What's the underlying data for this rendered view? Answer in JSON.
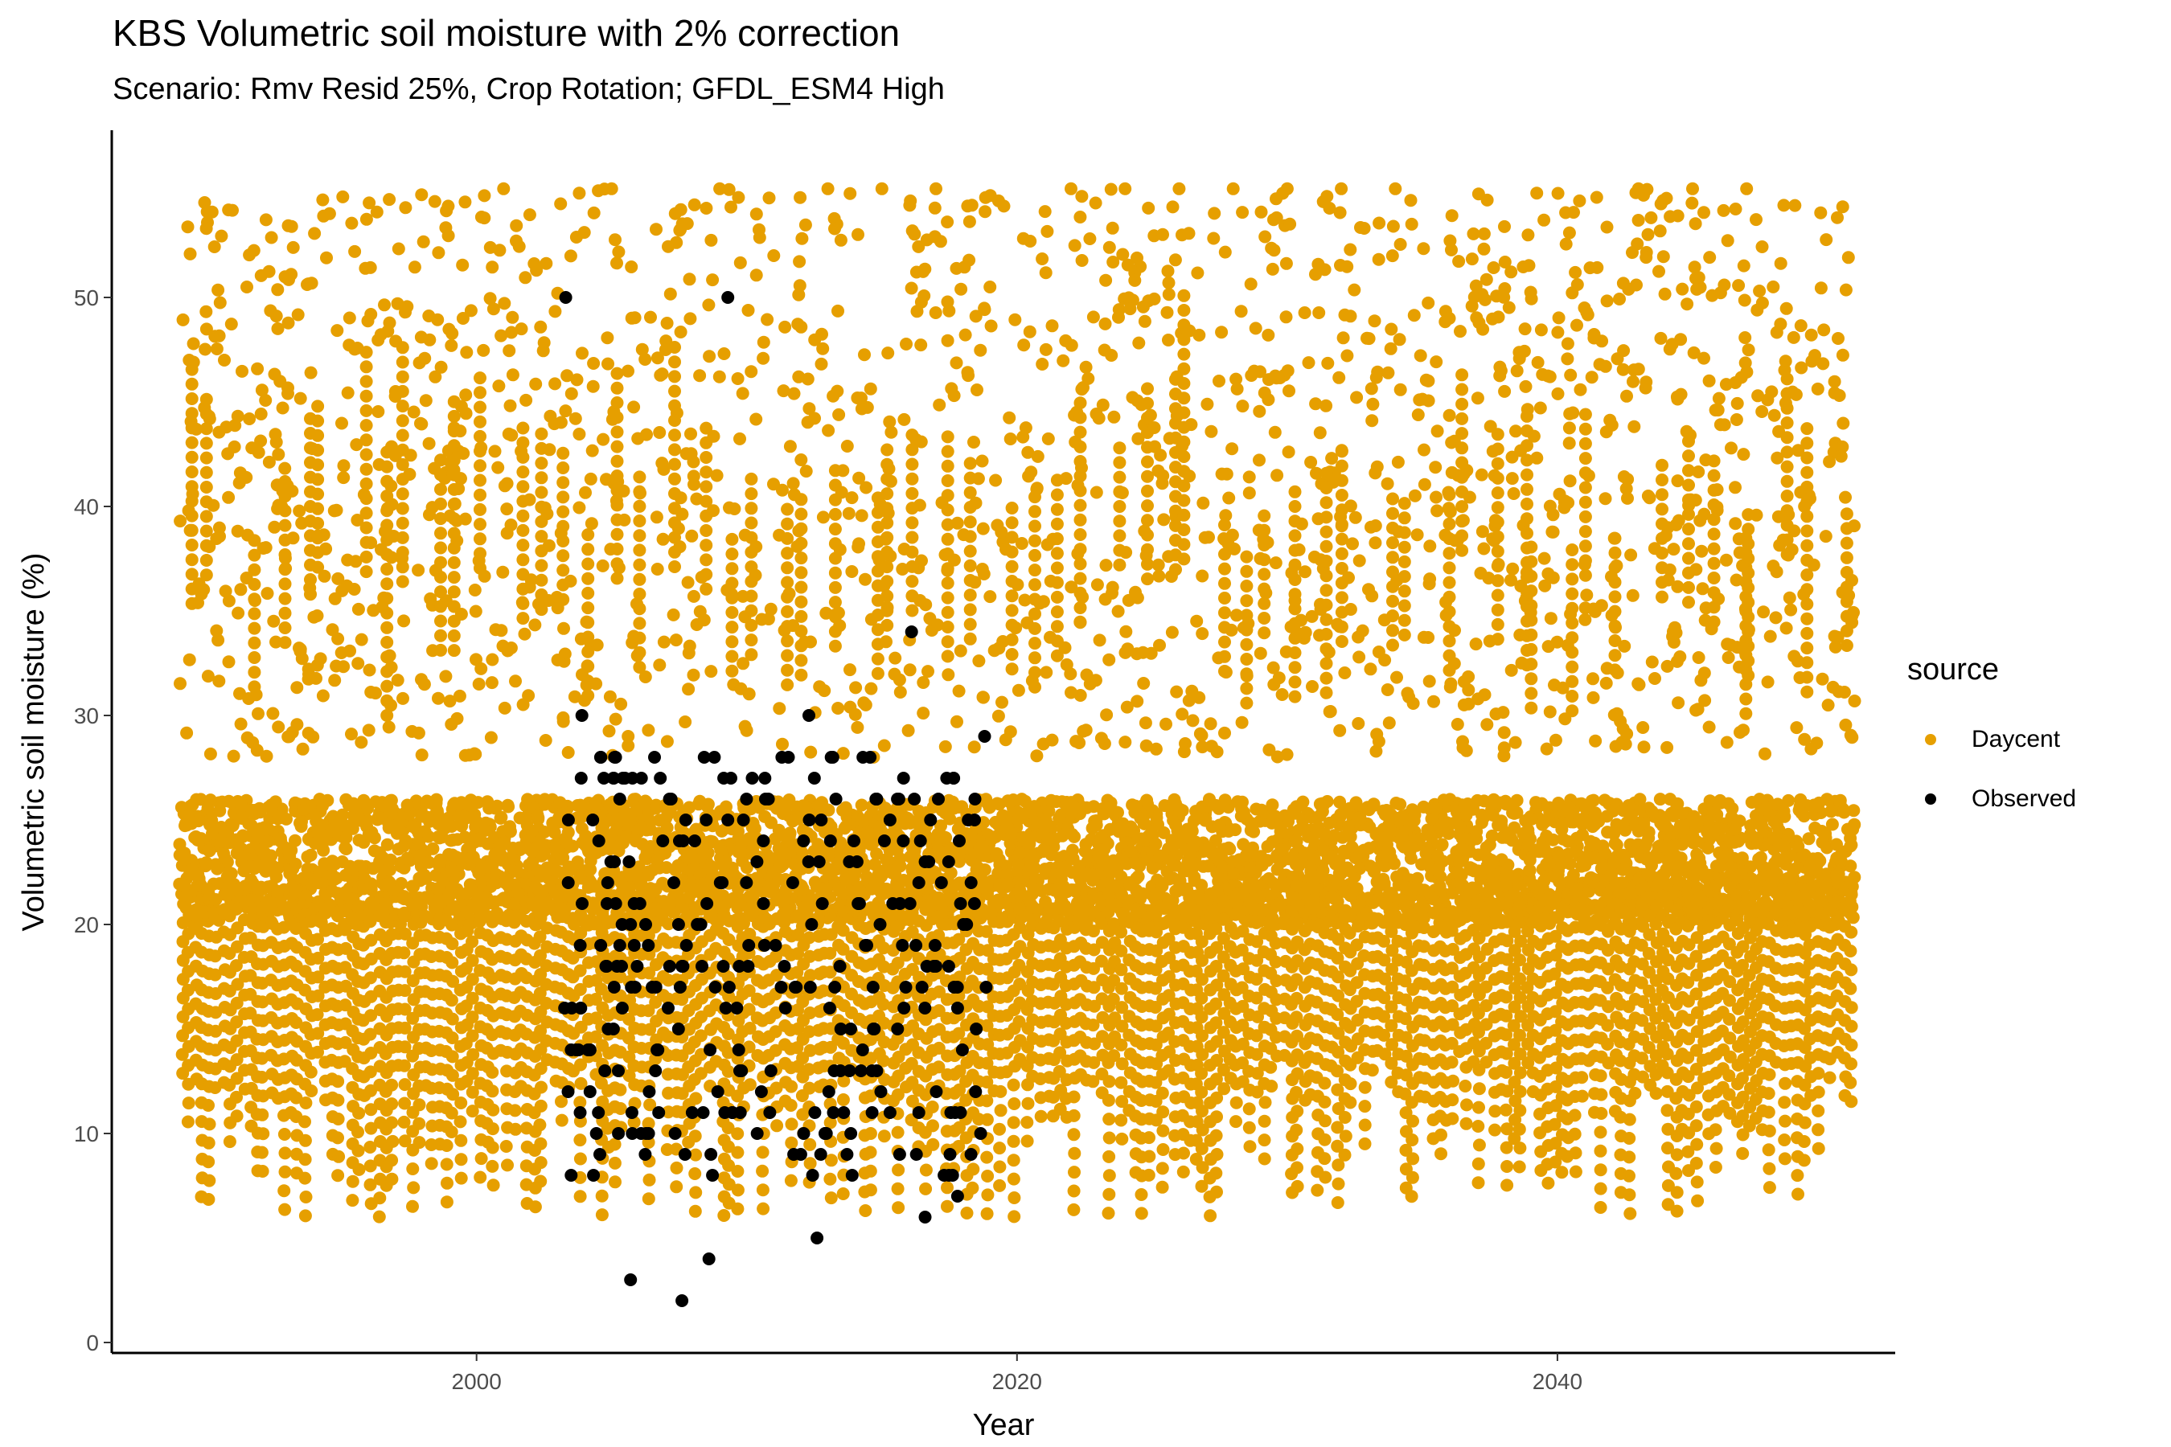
{
  "title": "KBS Volumetric soil moisture with 2% correction",
  "subtitle": "Scenario: Rmv Resid 25%, Crop Rotation; GFDL_ESM4 High",
  "chart_data": {
    "type": "scatter",
    "xlabel": "Year",
    "ylabel": "Volumetric soil moisture (%)",
    "xlim": [
      1986.5,
      2052.5
    ],
    "ylim": [
      -0.5,
      58
    ],
    "x_ticks": [
      "2000",
      "2020",
      "2040"
    ],
    "y_ticks": [
      "0",
      "10",
      "20",
      "30",
      "40",
      "50"
    ],
    "grid": false,
    "legend": {
      "title": "source",
      "placement": "right"
    },
    "colors": {
      "Daycent": "#E69F00",
      "Observed": "#000000"
    },
    "series": [
      {
        "name": "Daycent",
        "x_range": [
          1989,
          2051
        ],
        "description_of_density": "dense band",
        "representative_points": [
          [
            1990,
            53.3
          ],
          [
            1991.5,
            50.5
          ],
          [
            1993,
            41
          ],
          [
            1995,
            33
          ],
          [
            1997,
            45.5
          ],
          [
            1999.5,
            49
          ],
          [
            2001,
            55.2
          ],
          [
            2003,
            50.2
          ],
          [
            2005,
            55.2
          ],
          [
            2007,
            47.5
          ],
          [
            2009,
            55.2
          ],
          [
            2011,
            52
          ],
          [
            2013,
            55.2
          ],
          [
            2015,
            55.2
          ],
          [
            2017,
            55.2
          ],
          [
            2019,
            50.5
          ],
          [
            2022,
            55.2
          ],
          [
            2024,
            55.2
          ],
          [
            2026,
            55.2
          ],
          [
            2028,
            55.2
          ],
          [
            2030,
            55.2
          ],
          [
            2032,
            55.2
          ],
          [
            2034,
            55.2
          ],
          [
            2036,
            49
          ],
          [
            2039.5,
            53.7
          ],
          [
            2041,
            49.5
          ],
          [
            2043,
            55.2
          ],
          [
            2045,
            55.2
          ],
          [
            2047,
            55.2
          ],
          [
            2048.5,
            45.4
          ],
          [
            2050.5,
            42.4
          ]
        ]
      },
      {
        "name": "Observed",
        "x": [
          2003.4,
          2003.9,
          2004.6,
          2005.3,
          2005.7,
          2006.1,
          2006.5,
          2006.8,
          2007.3,
          2007.6,
          2008.3,
          2008.8,
          2009.3,
          2009.7,
          2010.2,
          2010.8,
          2011.3,
          2011.7,
          2012.1,
          2012.5,
          2012.9,
          2013.3,
          2013.8,
          2014.3,
          2014.8,
          2015.3,
          2015.8,
          2016.2,
          2016.6,
          2017.0,
          2017.4,
          2017.8,
          2018.3,
          2018.8,
          2003.3,
          2009.3,
          2012.3,
          2016.1,
          2007.6,
          2005.7,
          2008.6,
          2012.6,
          2003.5,
          2016.6,
          2013.9,
          2017.8,
          2004.2
        ],
        "y": [
          25,
          30,
          28,
          26,
          20,
          27,
          17,
          27,
          22,
          18,
          20,
          28,
          25,
          14,
          27,
          26,
          28,
          22,
          24,
          27,
          10,
          26,
          23,
          28,
          26,
          25,
          27,
          26,
          23,
          18,
          27,
          16,
          22,
          29,
          50,
          50,
          30,
          34,
          2,
          3,
          4,
          5,
          8,
          6,
          8,
          7,
          12
        ]
      }
    ]
  }
}
